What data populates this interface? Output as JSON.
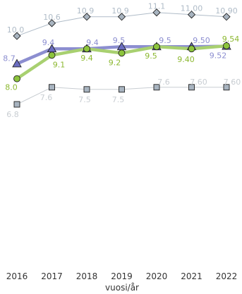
{
  "chart_data": {
    "type": "line",
    "xlabel": "vuosi/år",
    "ylabel": "",
    "grid": false,
    "x": [
      2016,
      2017,
      2018,
      2019,
      2020,
      2021,
      2022
    ],
    "ylim": [
      0,
      11.5
    ],
    "series": [
      {
        "marker": "diamond",
        "color": "#b0bcc8",
        "fill": "#a8b4c0",
        "values": [
          10.0,
          10.6,
          10.9,
          10.9,
          11.1,
          11.0,
          10.9
        ],
        "labels": [
          "10.0",
          "10.6",
          "10.9",
          "10.9",
          "11.1",
          "11.00",
          "10.90"
        ]
      },
      {
        "marker": "triangle",
        "color": "#8c8ed0",
        "fill": "#6a6cc0",
        "values": [
          8.7,
          9.4,
          9.4,
          9.5,
          9.5,
          9.5,
          9.52
        ],
        "labels": [
          "8.7",
          "9.4",
          "9.4",
          "9.5",
          "9.5",
          "9.50",
          "9.52"
        ]
      },
      {
        "marker": "circle",
        "color": "#a8d070",
        "fill": "#8cc43c",
        "labelColor": "#8cb830",
        "values": [
          8.0,
          9.1,
          9.4,
          9.2,
          9.5,
          9.4,
          9.54
        ],
        "labels": [
          "8.0",
          "9.1",
          "9.4",
          "9.2",
          "9.5",
          "9.40",
          "9.54"
        ]
      },
      {
        "marker": "square",
        "color": "#c8cdd2",
        "fill": "#a8b4c0",
        "values": [
          6.8,
          7.6,
          7.5,
          7.5,
          7.6,
          7.6,
          7.6
        ],
        "labels": [
          "6.8",
          "7.6",
          "7.5",
          "7.5",
          "7.6",
          "7.60",
          "7.60"
        ]
      }
    ]
  }
}
